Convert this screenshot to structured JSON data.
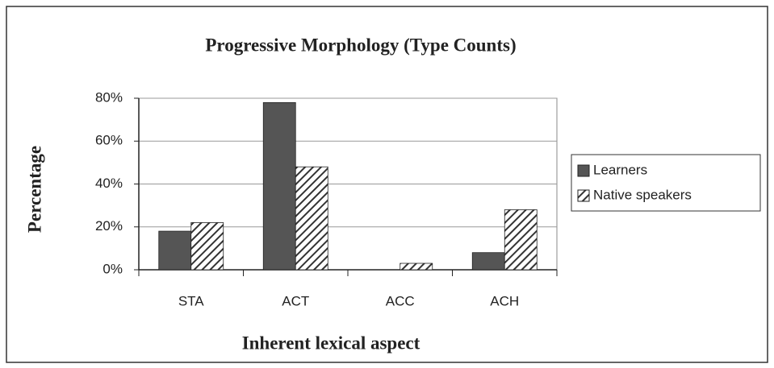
{
  "chart_data": {
    "type": "bar",
    "title": "Progressive Morphology (Type Counts)",
    "x_label": "Inherent lexical aspect",
    "y_label": "Percentage",
    "categories": [
      "STA",
      "ACT",
      "ACC",
      "ACH"
    ],
    "series": [
      {
        "name": "Learners",
        "color": "#555555",
        "values": [
          18,
          78,
          0,
          8
        ]
      },
      {
        "name": "Native speakers",
        "color": "#333333",
        "pattern": "hatch",
        "values": [
          22,
          48,
          3,
          28
        ]
      }
    ],
    "ylim": [
      0,
      80
    ],
    "yticks": [
      {
        "value": 0,
        "label": "0%"
      },
      {
        "value": 20,
        "label": "20%"
      },
      {
        "value": 40,
        "label": "40%"
      },
      {
        "value": 60,
        "label": "60%"
      },
      {
        "value": 80,
        "label": "80%"
      }
    ],
    "grid": true,
    "legend": "right"
  }
}
